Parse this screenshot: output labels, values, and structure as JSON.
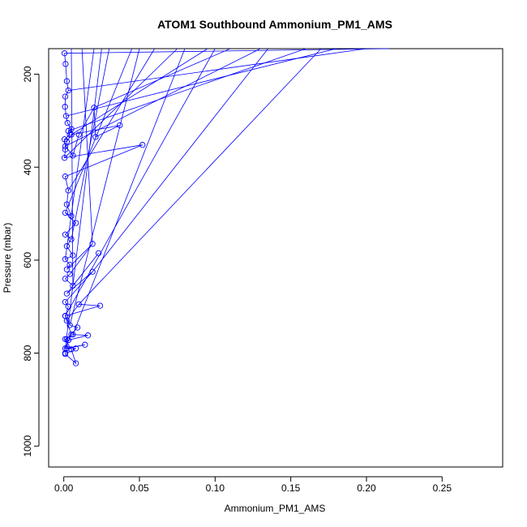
{
  "chart_data": {
    "type": "line",
    "title": "ATOM1 Southbound Ammonium_PM1_AMS",
    "xlabel": "Ammonium_PM1_AMS",
    "ylabel": "Pressure (mbar)",
    "xlim": [
      -0.01,
      0.29
    ],
    "ylim": [
      1045,
      145
    ],
    "y_reversed": true,
    "grid": false,
    "legend": "none",
    "x_ticks": [
      0.0,
      0.05,
      0.1,
      0.15,
      0.2,
      0.25
    ],
    "x_tick_labels": [
      "0.00",
      "0.05",
      "0.10",
      "0.15",
      "0.20",
      "0.25"
    ],
    "y_ticks": [
      200,
      400,
      600,
      800,
      1000
    ],
    "y_tick_labels": [
      "200",
      "400",
      "600",
      "800",
      "1000"
    ],
    "marker": "open-circle",
    "series": [
      {
        "color": "#0000ff",
        "x": [
          0.0005,
          0.0012,
          0.002,
          0.003,
          0.001,
          0.0008,
          0.0015,
          0.0025,
          0.005,
          0.003,
          0.004,
          0.0005,
          0.001,
          0.006,
          0.01,
          0.02,
          0.021,
          0.037,
          0.005,
          0.002,
          0.001,
          0.0005,
          0.052,
          0.001,
          0.003,
          0.002,
          0.005,
          0.001,
          0.008,
          0.001,
          0.005,
          0.002,
          0.006,
          0.001,
          0.004,
          0.002,
          0.019,
          0.004,
          0.001,
          0.006,
          0.023,
          0.002,
          0.019,
          0.001,
          0.003,
          0.001,
          0.005,
          0.002,
          0.01,
          0.024,
          0.001,
          0.004,
          0.009,
          0.002,
          0.006,
          0.016,
          0.003,
          0.001,
          0.014,
          0.002,
          0.008,
          0.001,
          0.008,
          0.005,
          0.001,
          0.003,
          0.001
        ],
        "y": [
          155,
          178,
          215,
          235,
          248,
          270,
          290,
          305,
          318,
          322,
          330,
          340,
          355,
          375,
          330,
          272,
          335,
          310,
          330,
          345,
          362,
          380,
          352,
          420,
          450,
          480,
          505,
          498,
          520,
          545,
          555,
          570,
          590,
          598,
          610,
          620,
          565,
          630,
          640,
          655,
          585,
          672,
          625,
          690,
          700,
          720,
          760,
          730,
          695,
          698,
          720,
          740,
          745,
          770,
          760,
          762,
          772,
          790,
          782,
          790,
          790,
          802,
          822,
          792,
          770,
          772,
          800
        ]
      },
      {
        "name": "",
        "color": "#0000ff",
        "segments_to_top": [
          0.215,
          0.2,
          0.18,
          0.16,
          0.13,
          0.11,
          0.095,
          0.075,
          0.06,
          0.045,
          0.03,
          0.02,
          0.012,
          0.005,
          0.135,
          0.1,
          0.17,
          0.05,
          0.08,
          0.025
        ]
      }
    ]
  }
}
